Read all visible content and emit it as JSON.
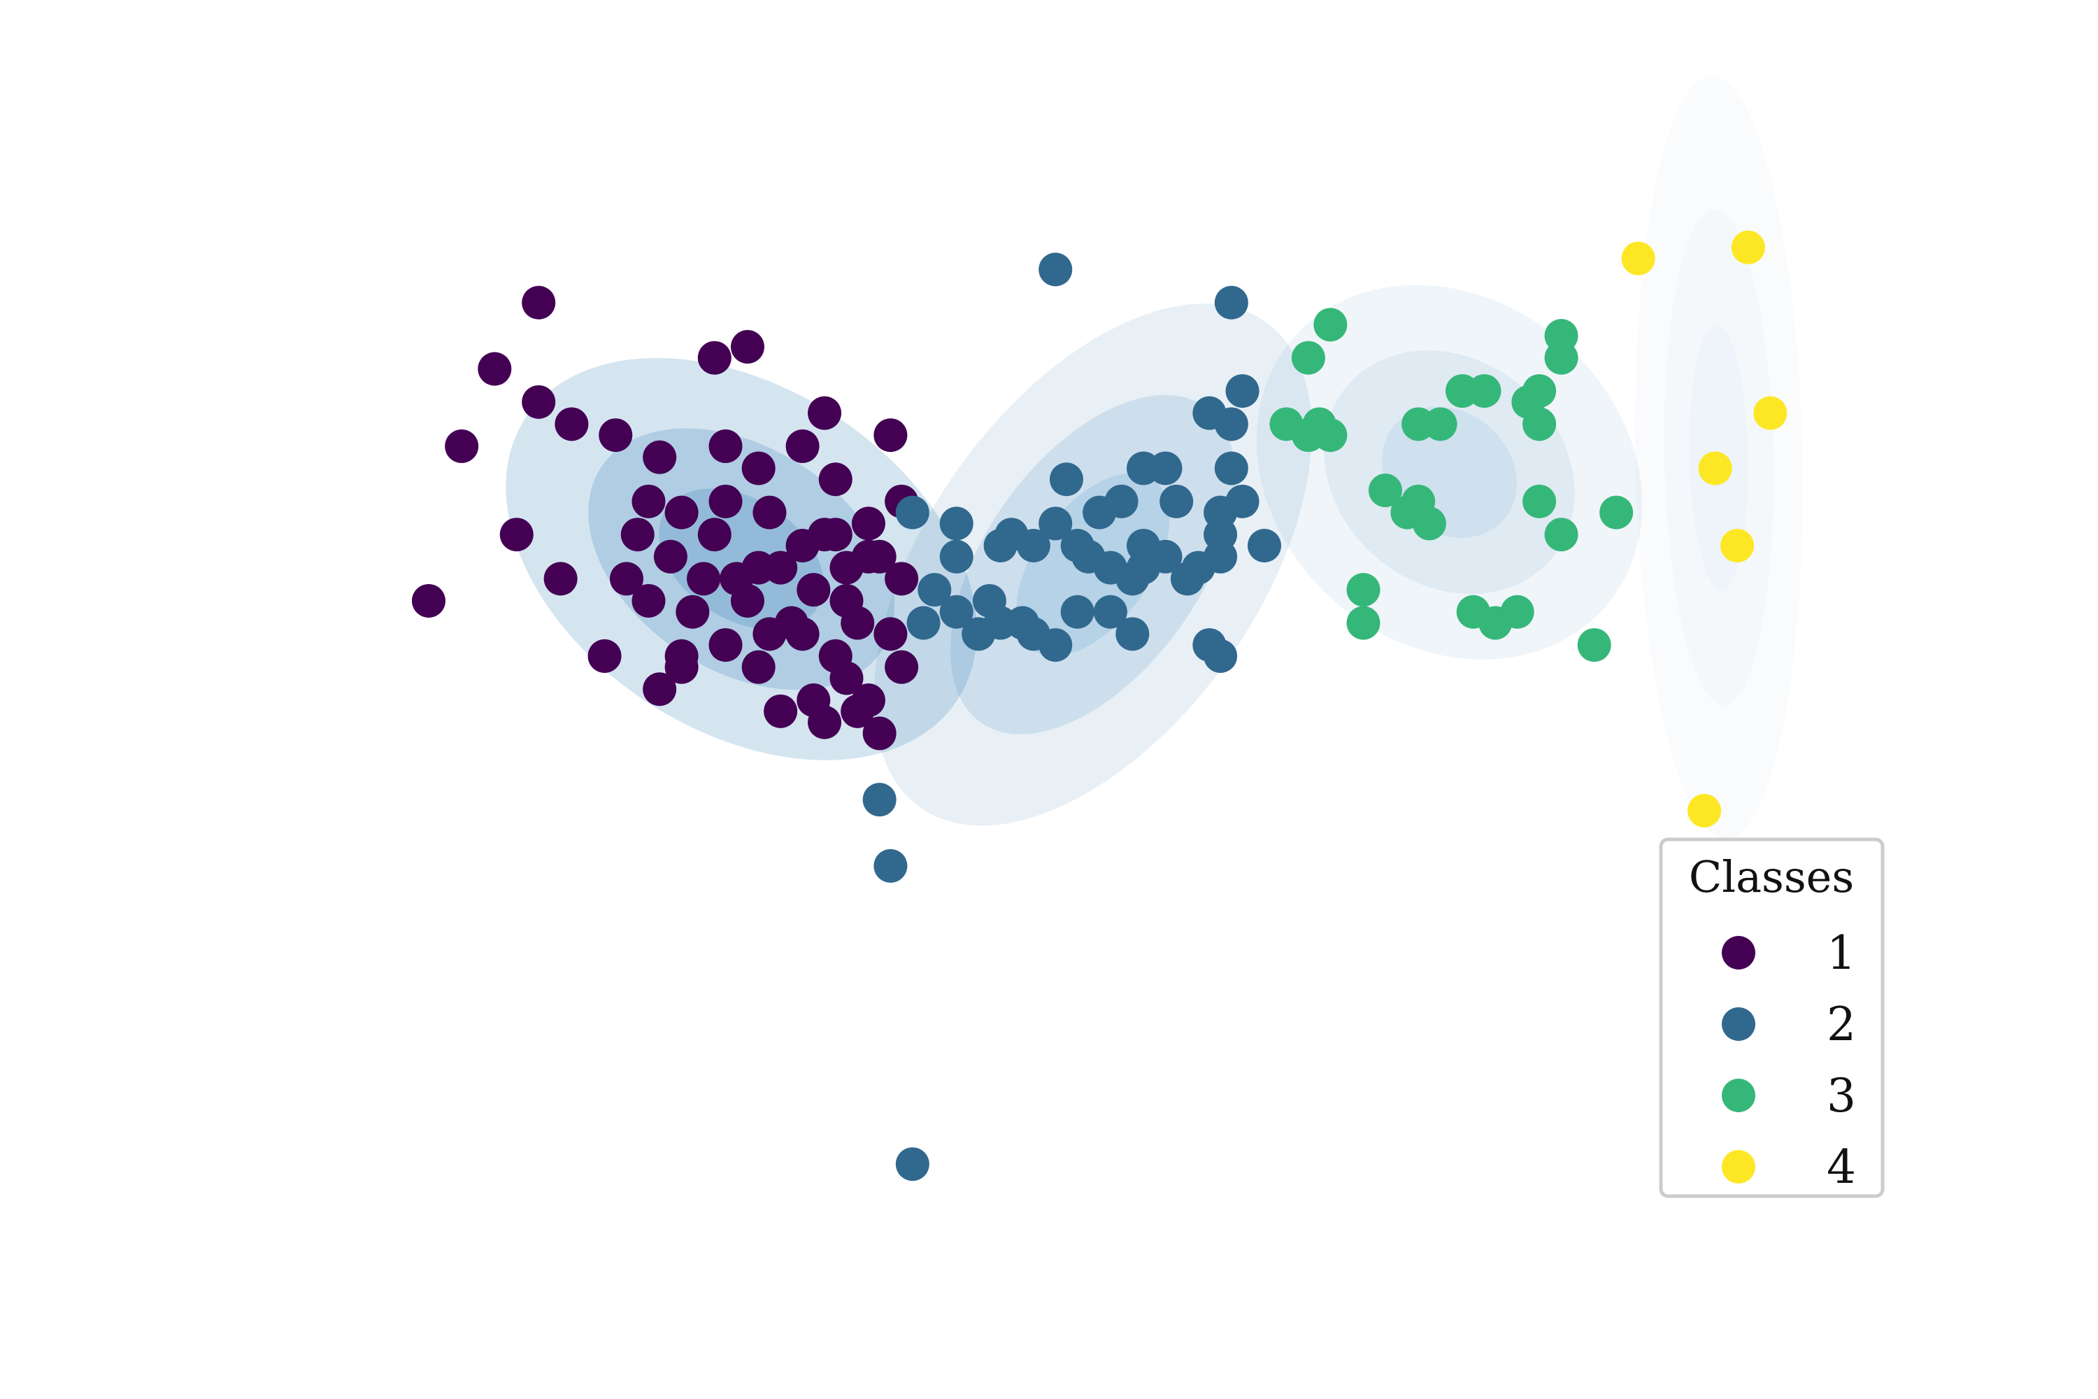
{
  "chart_data": {
    "type": "scatter",
    "axes_visible": false,
    "grid": false,
    "xlim": [
      -4.3,
      10.2
    ],
    "ylim": [
      -5.2,
      4.3
    ],
    "legend": {
      "title": "Classes",
      "placement": "lower-right",
      "labels": [
        "1",
        "2",
        "3",
        "4"
      ]
    },
    "series": [
      {
        "name": "1",
        "color": "#440154",
        "points": [
          [
            -3.2,
            0.0
          ],
          [
            -2.9,
            1.4
          ],
          [
            -2.6,
            2.1
          ],
          [
            -2.2,
            2.7
          ],
          [
            -2.4,
            0.6
          ],
          [
            -2.0,
            0.2
          ],
          [
            -1.6,
            -0.5
          ],
          [
            -1.4,
            0.2
          ],
          [
            -1.1,
            -0.8
          ],
          [
            -0.9,
            -0.5
          ],
          [
            -0.6,
            2.2
          ],
          [
            -0.3,
            2.3
          ],
          [
            -2.2,
            1.8
          ],
          [
            -1.9,
            1.6
          ],
          [
            -1.5,
            1.5
          ],
          [
            -1.1,
            1.3
          ],
          [
            -0.5,
            1.4
          ],
          [
            -0.2,
            1.2
          ],
          [
            0.2,
            1.4
          ],
          [
            0.4,
            1.7
          ],
          [
            0.5,
            1.1
          ],
          [
            -1.3,
            0.6
          ],
          [
            -1.0,
            0.4
          ],
          [
            -0.7,
            0.2
          ],
          [
            -0.3,
            0.0
          ],
          [
            0.0,
            0.3
          ],
          [
            0.2,
            -0.3
          ],
          [
            0.5,
            0.6
          ],
          [
            0.6,
            -0.7
          ],
          [
            0.8,
            -0.9
          ],
          [
            -0.8,
            -0.1
          ],
          [
            -0.5,
            -0.4
          ],
          [
            -0.2,
            -0.6
          ],
          [
            0.1,
            -0.2
          ],
          [
            0.3,
            0.1
          ],
          [
            0.6,
            0.3
          ],
          [
            0.7,
            -0.2
          ],
          [
            0.9,
            0.4
          ],
          [
            1.0,
            -0.3
          ],
          [
            0.9,
            -1.2
          ],
          [
            0.7,
            -1.0
          ],
          [
            -1.2,
            0.9
          ],
          [
            -0.9,
            0.8
          ],
          [
            -0.5,
            0.9
          ],
          [
            -0.1,
            0.8
          ],
          [
            0.4,
            0.6
          ],
          [
            0.8,
            0.7
          ],
          [
            1.1,
            0.2
          ],
          [
            1.1,
            0.9
          ],
          [
            1.0,
            1.5
          ],
          [
            0.8,
            0.4
          ],
          [
            0.5,
            -0.5
          ],
          [
            -0.2,
            0.3
          ],
          [
            -1.2,
            0.0
          ],
          [
            -0.9,
            -0.6
          ],
          [
            0.2,
            0.5
          ],
          [
            -0.6,
            0.6
          ],
          [
            0.3,
            -0.9
          ],
          [
            0.6,
            0.0
          ],
          [
            1.1,
            -0.6
          ],
          [
            -0.1,
            -0.3
          ],
          [
            -0.4,
            0.2
          ],
          [
            0.0,
            -1.0
          ],
          [
            0.4,
            -1.1
          ]
        ]
      },
      {
        "name": "2",
        "color": "#31688e",
        "points": [
          [
            2.5,
            3.0
          ],
          [
            4.1,
            2.7
          ],
          [
            4.2,
            1.9
          ],
          [
            3.9,
            1.7
          ],
          [
            4.1,
            1.6
          ],
          [
            3.5,
            1.2
          ],
          [
            3.3,
            1.2
          ],
          [
            4.1,
            1.2
          ],
          [
            2.6,
            1.1
          ],
          [
            3.1,
            0.9
          ],
          [
            3.6,
            0.9
          ],
          [
            4.0,
            0.8
          ],
          [
            4.2,
            0.9
          ],
          [
            4.4,
            0.5
          ],
          [
            4.0,
            0.6
          ],
          [
            1.6,
            0.7
          ],
          [
            2.9,
            0.8
          ],
          [
            2.5,
            0.7
          ],
          [
            2.3,
            0.5
          ],
          [
            2.0,
            0.5
          ],
          [
            2.1,
            0.6
          ],
          [
            2.8,
            0.4
          ],
          [
            3.3,
            0.5
          ],
          [
            3.5,
            0.4
          ],
          [
            3.8,
            0.3
          ],
          [
            4.0,
            0.4
          ],
          [
            3.7,
            0.2
          ],
          [
            3.2,
            0.2
          ],
          [
            3.0,
            0.3
          ],
          [
            1.6,
            0.4
          ],
          [
            1.2,
            0.8
          ],
          [
            3.0,
            -0.1
          ],
          [
            2.7,
            -0.1
          ],
          [
            3.2,
            -0.3
          ],
          [
            3.9,
            -0.4
          ],
          [
            4.0,
            -0.5
          ],
          [
            1.4,
            0.1
          ],
          [
            1.6,
            -0.1
          ],
          [
            1.9,
            0.0
          ],
          [
            2.2,
            -0.2
          ],
          [
            2.5,
            -0.4
          ],
          [
            2.7,
            0.5
          ],
          [
            3.3,
            0.3
          ],
          [
            2.3,
            -0.3
          ],
          [
            1.3,
            -0.2
          ],
          [
            0.9,
            -1.8
          ],
          [
            1.0,
            -2.4
          ],
          [
            1.2,
            -5.1
          ],
          [
            1.8,
            -0.3
          ],
          [
            2.0,
            -0.2
          ]
        ]
      },
      {
        "name": "3",
        "color": "#35b779",
        "points": [
          [
            5.0,
            2.5
          ],
          [
            4.8,
            2.2
          ],
          [
            4.6,
            1.6
          ],
          [
            4.9,
            1.6
          ],
          [
            5.0,
            1.5
          ],
          [
            4.8,
            1.5
          ],
          [
            5.8,
            1.6
          ],
          [
            6.0,
            1.6
          ],
          [
            6.2,
            1.9
          ],
          [
            6.4,
            1.9
          ],
          [
            6.8,
            1.8
          ],
          [
            6.9,
            1.9
          ],
          [
            7.1,
            2.4
          ],
          [
            7.1,
            2.2
          ],
          [
            6.9,
            1.6
          ],
          [
            5.5,
            1.0
          ],
          [
            5.8,
            0.9
          ],
          [
            5.9,
            0.7
          ],
          [
            5.7,
            0.8
          ],
          [
            6.9,
            0.9
          ],
          [
            7.1,
            0.6
          ],
          [
            7.6,
            0.8
          ],
          [
            7.4,
            -0.4
          ],
          [
            5.3,
            0.1
          ],
          [
            5.3,
            -0.2
          ],
          [
            6.3,
            -0.1
          ],
          [
            6.5,
            -0.2
          ],
          [
            6.7,
            -0.1
          ]
        ]
      },
      {
        "name": "4",
        "color": "#fde725",
        "points": [
          [
            7.8,
            3.1
          ],
          [
            8.8,
            3.2
          ],
          [
            9.0,
            1.7
          ],
          [
            8.5,
            1.2
          ],
          [
            8.7,
            0.5
          ],
          [
            8.4,
            -1.9
          ]
        ]
      }
    ]
  }
}
